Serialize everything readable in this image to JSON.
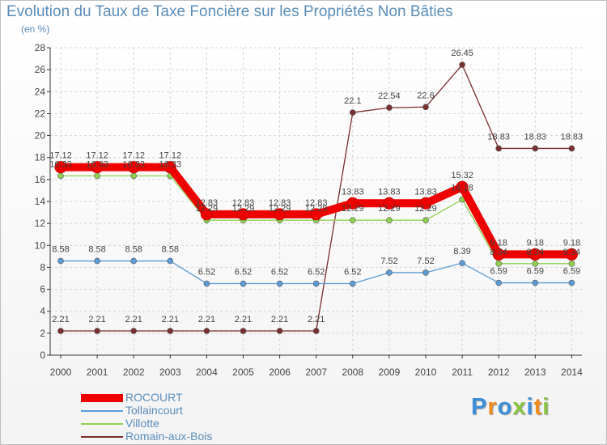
{
  "title": "Evolution du Taux de Taxe Foncière sur les Propriétés Non Bâties",
  "unit": "(en %)",
  "chart_data": {
    "type": "line",
    "title": "Evolution du Taux de Taxe Foncière sur les Propriétés Non Bâties",
    "ylabel": "(en %)",
    "xlabel": "",
    "ylim": [
      0,
      28
    ],
    "yticks": [
      "0",
      "2",
      "4",
      "6",
      "8",
      "10",
      "12",
      "14",
      "16",
      "18",
      "20",
      "22",
      "24",
      "26",
      "28"
    ],
    "categories": [
      "2000",
      "2001",
      "2002",
      "2003",
      "2004",
      "2005",
      "2006",
      "2007",
      "2008",
      "2009",
      "2010",
      "2011",
      "2012",
      "2013",
      "2014"
    ],
    "series": [
      {
        "name": "ROCOURT",
        "color": "#ee0000",
        "values": [
          17.12,
          17.12,
          17.12,
          17.12,
          12.83,
          12.83,
          12.83,
          12.83,
          13.83,
          13.83,
          13.83,
          15.32,
          9.18,
          9.18,
          9.18
        ],
        "labels": [
          "17.12",
          "17.12",
          "17.12",
          "17.12",
          "12.83",
          "12.83",
          "12.83",
          "12.83",
          "13.83",
          "13.83",
          "13.83",
          "15.32",
          "9.18",
          "9.18",
          "9.18"
        ]
      },
      {
        "name": "Tollaincourt",
        "color": "#5b9bd5",
        "values": [
          8.58,
          8.58,
          8.58,
          8.58,
          6.52,
          6.52,
          6.52,
          6.52,
          6.52,
          7.52,
          7.52,
          8.39,
          6.59,
          6.59,
          6.59
        ],
        "labels": [
          "8.58",
          "8.58",
          "8.58",
          "8.58",
          "6.52",
          "6.52",
          "6.52",
          "6.52",
          "6.52",
          "7.52",
          "7.52",
          "8.39",
          "6.59",
          "6.59",
          "6.59"
        ]
      },
      {
        "name": "Villotte",
        "color": "#8ed14f",
        "values": [
          16.33,
          16.33,
          16.33,
          16.33,
          12.29,
          12.29,
          12.29,
          12.29,
          12.29,
          12.29,
          12.29,
          14.18,
          8.34,
          8.34,
          8.34
        ],
        "labels": [
          "16.33",
          "16.33",
          "16.33",
          "16.33",
          "12.29",
          "12.29",
          "12.29",
          "12.29",
          "12.29",
          "12.29",
          "12.29",
          "14.18",
          "8.34",
          "8.34",
          "8.34"
        ]
      },
      {
        "name": "Romain-aux-Bois",
        "color": "#7a2e2e",
        "values": [
          2.21,
          2.21,
          2.21,
          2.21,
          2.21,
          2.21,
          2.21,
          2.21,
          22.1,
          22.54,
          22.6,
          26.45,
          18.83,
          18.83,
          18.83
        ],
        "labels": [
          "2.21",
          "2.21",
          "2.21",
          "2.21",
          "2.21",
          "2.21",
          "2.21",
          "2.21",
          "22.1",
          "22.54",
          "22.6",
          "26.45",
          "18.83",
          "18.83",
          "18.83"
        ]
      }
    ]
  },
  "legend": {
    "items": [
      {
        "label": "ROCOURT",
        "color": "#ee0000"
      },
      {
        "label": "Tollaincourt",
        "color": "#5b9bd5"
      },
      {
        "label": "Villotte",
        "color": "#8ed14f"
      },
      {
        "label": "Romain-aux-Bois",
        "color": "#7a2e2e"
      }
    ]
  },
  "logo": {
    "letters": [
      "P",
      "r",
      "o",
      "x",
      "i",
      "t",
      "i"
    ],
    "colors": [
      "#3b8fd8",
      "#f08c1c",
      "#3b8fd8",
      "#8ac43f",
      "#3b8fd8",
      "#f08c1c",
      "#8ac43f"
    ]
  }
}
